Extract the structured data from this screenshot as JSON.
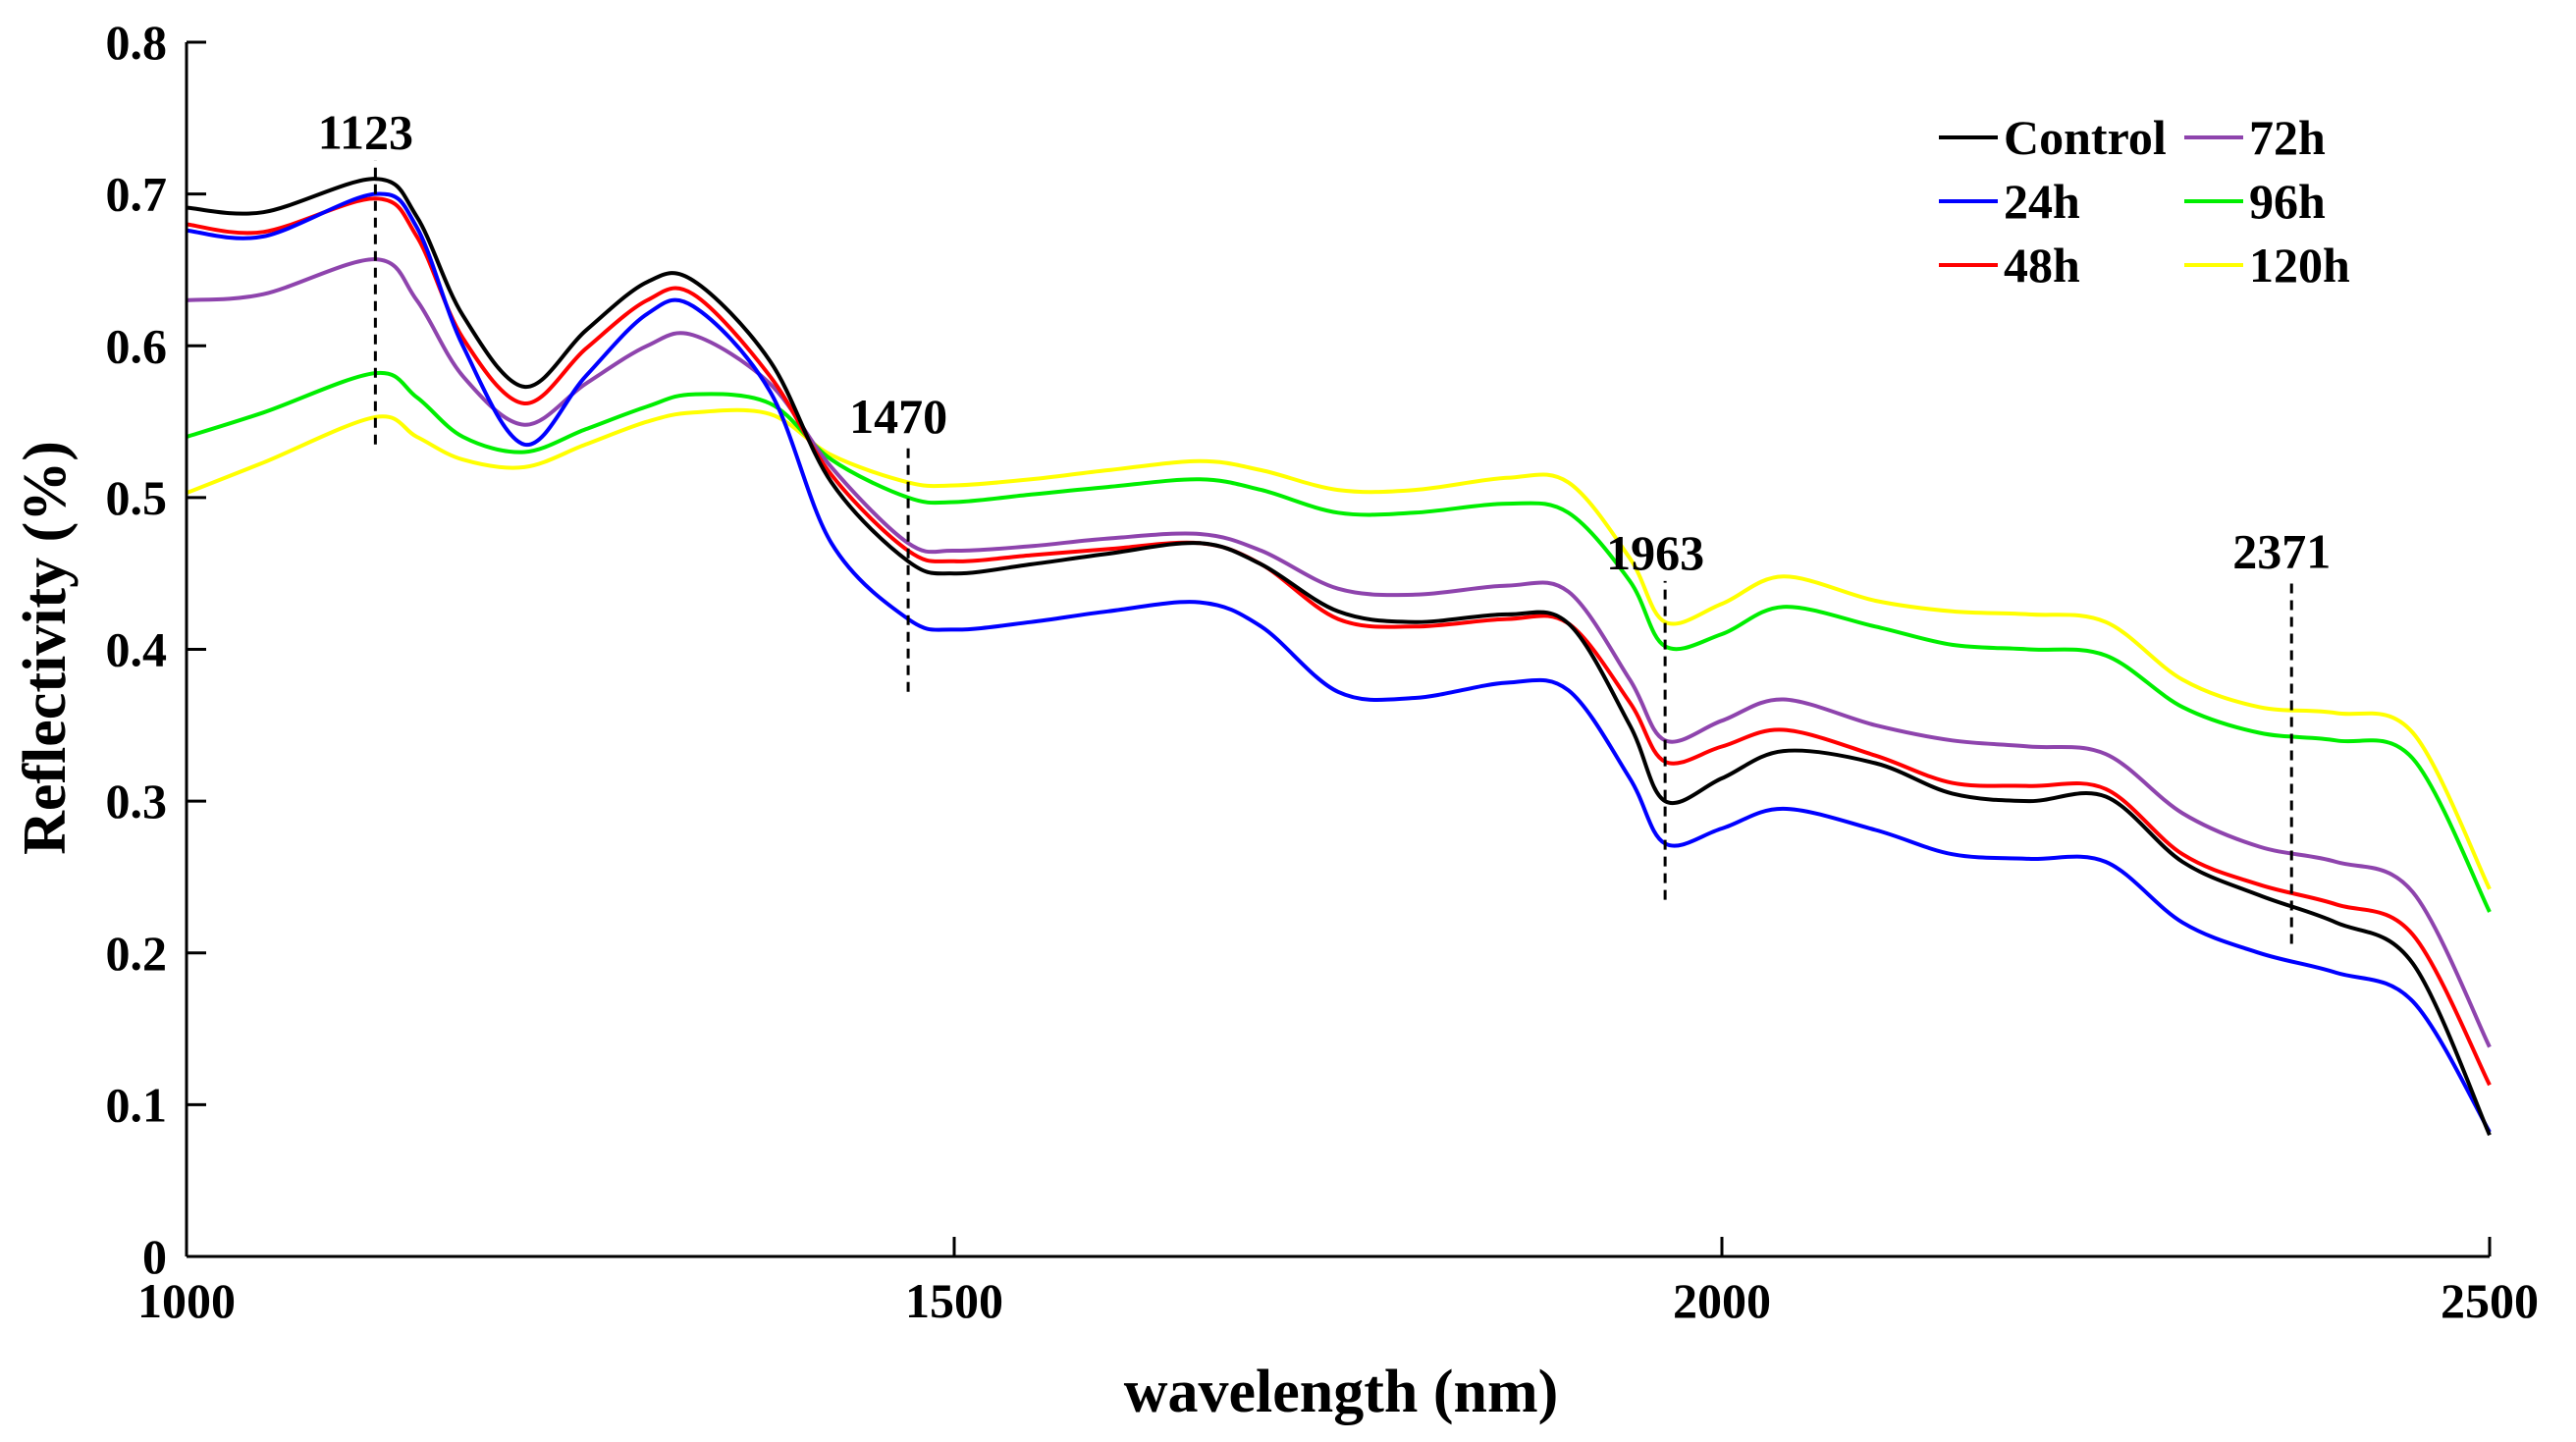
{
  "chart_data": {
    "type": "line",
    "title": "",
    "xlabel": "wavelength (nm)",
    "ylabel": "Reflectivity (%)",
    "xlim": [
      1000,
      2500
    ],
    "ylim": [
      0,
      0.8
    ],
    "xticks": [
      1000,
      1500,
      2000,
      2500
    ],
    "xtick_labels": [
      "1000",
      "1500",
      "2000",
      "2500"
    ],
    "yticks": [
      0,
      0.1,
      0.2,
      0.3,
      0.4,
      0.5,
      0.6,
      0.7,
      0.8
    ],
    "ytick_labels": [
      "0",
      "0.1",
      "0.2",
      "0.3",
      "0.4",
      "0.5",
      "0.6",
      "0.7",
      "0.8"
    ],
    "grid": false,
    "legend_position": "top-right",
    "x": [
      1000,
      1050,
      1123,
      1150,
      1180,
      1220,
      1260,
      1300,
      1330,
      1380,
      1420,
      1470,
      1500,
      1550,
      1600,
      1660,
      1700,
      1750,
      1800,
      1860,
      1900,
      1940,
      1963,
      2000,
      2040,
      2100,
      2150,
      2200,
      2250,
      2300,
      2350,
      2400,
      2450,
      2500
    ],
    "series": [
      {
        "name": "Control",
        "color": "#000000",
        "values": [
          0.691,
          0.688,
          0.71,
          0.685,
          0.62,
          0.573,
          0.61,
          0.642,
          0.643,
          0.59,
          0.51,
          0.458,
          0.45,
          0.456,
          0.463,
          0.47,
          0.456,
          0.425,
          0.418,
          0.423,
          0.417,
          0.35,
          0.3,
          0.315,
          0.333,
          0.325,
          0.305,
          0.3,
          0.303,
          0.26,
          0.238,
          0.22,
          0.193,
          0.08
        ]
      },
      {
        "name": "24h",
        "color": "#0000ff",
        "values": [
          0.676,
          0.672,
          0.7,
          0.678,
          0.6,
          0.535,
          0.58,
          0.621,
          0.626,
          0.57,
          0.47,
          0.42,
          0.413,
          0.418,
          0.425,
          0.431,
          0.415,
          0.372,
          0.368,
          0.378,
          0.373,
          0.315,
          0.272,
          0.282,
          0.295,
          0.281,
          0.265,
          0.262,
          0.26,
          0.22,
          0.2,
          0.187,
          0.168,
          0.082
        ]
      },
      {
        "name": "48h",
        "color": "#ff0000",
        "values": [
          0.68,
          0.675,
          0.697,
          0.672,
          0.605,
          0.562,
          0.598,
          0.63,
          0.634,
          0.58,
          0.515,
          0.465,
          0.458,
          0.462,
          0.466,
          0.47,
          0.456,
          0.42,
          0.415,
          0.42,
          0.417,
          0.365,
          0.326,
          0.336,
          0.347,
          0.33,
          0.312,
          0.31,
          0.308,
          0.265,
          0.245,
          0.232,
          0.212,
          0.113
        ]
      },
      {
        "name": "72h",
        "color": "#8e44ad",
        "values": [
          0.63,
          0.634,
          0.657,
          0.63,
          0.58,
          0.548,
          0.575,
          0.6,
          0.607,
          0.575,
          0.52,
          0.47,
          0.465,
          0.468,
          0.473,
          0.476,
          0.465,
          0.44,
          0.436,
          0.442,
          0.438,
          0.38,
          0.34,
          0.353,
          0.367,
          0.35,
          0.34,
          0.336,
          0.331,
          0.292,
          0.27,
          0.26,
          0.24,
          0.138
        ]
      },
      {
        "name": "96h",
        "color": "#00ee00",
        "values": [
          0.54,
          0.556,
          0.582,
          0.566,
          0.54,
          0.53,
          0.545,
          0.56,
          0.568,
          0.562,
          0.525,
          0.5,
          0.497,
          0.502,
          0.507,
          0.512,
          0.505,
          0.49,
          0.49,
          0.496,
          0.49,
          0.445,
          0.402,
          0.41,
          0.428,
          0.415,
          0.403,
          0.4,
          0.396,
          0.362,
          0.345,
          0.34,
          0.328,
          0.227
        ]
      },
      {
        "name": "120h",
        "color": "#ffff00",
        "values": [
          0.503,
          0.523,
          0.553,
          0.54,
          0.525,
          0.52,
          0.535,
          0.55,
          0.556,
          0.555,
          0.528,
          0.51,
          0.508,
          0.512,
          0.518,
          0.524,
          0.518,
          0.505,
          0.505,
          0.513,
          0.51,
          0.46,
          0.418,
          0.43,
          0.448,
          0.432,
          0.425,
          0.423,
          0.418,
          0.38,
          0.362,
          0.358,
          0.345,
          0.242
        ]
      }
    ],
    "annotations": [
      {
        "label": "1123",
        "x": 1123,
        "y_from": 0.535,
        "y_to": 0.722
      },
      {
        "label": "1470",
        "x": 1470,
        "y_from": 0.372,
        "y_to": 0.535
      },
      {
        "label": "1963",
        "x": 1963,
        "y_from": 0.235,
        "y_to": 0.445
      },
      {
        "label": "2371",
        "x": 2371,
        "y_from": 0.206,
        "y_to": 0.446
      }
    ]
  }
}
